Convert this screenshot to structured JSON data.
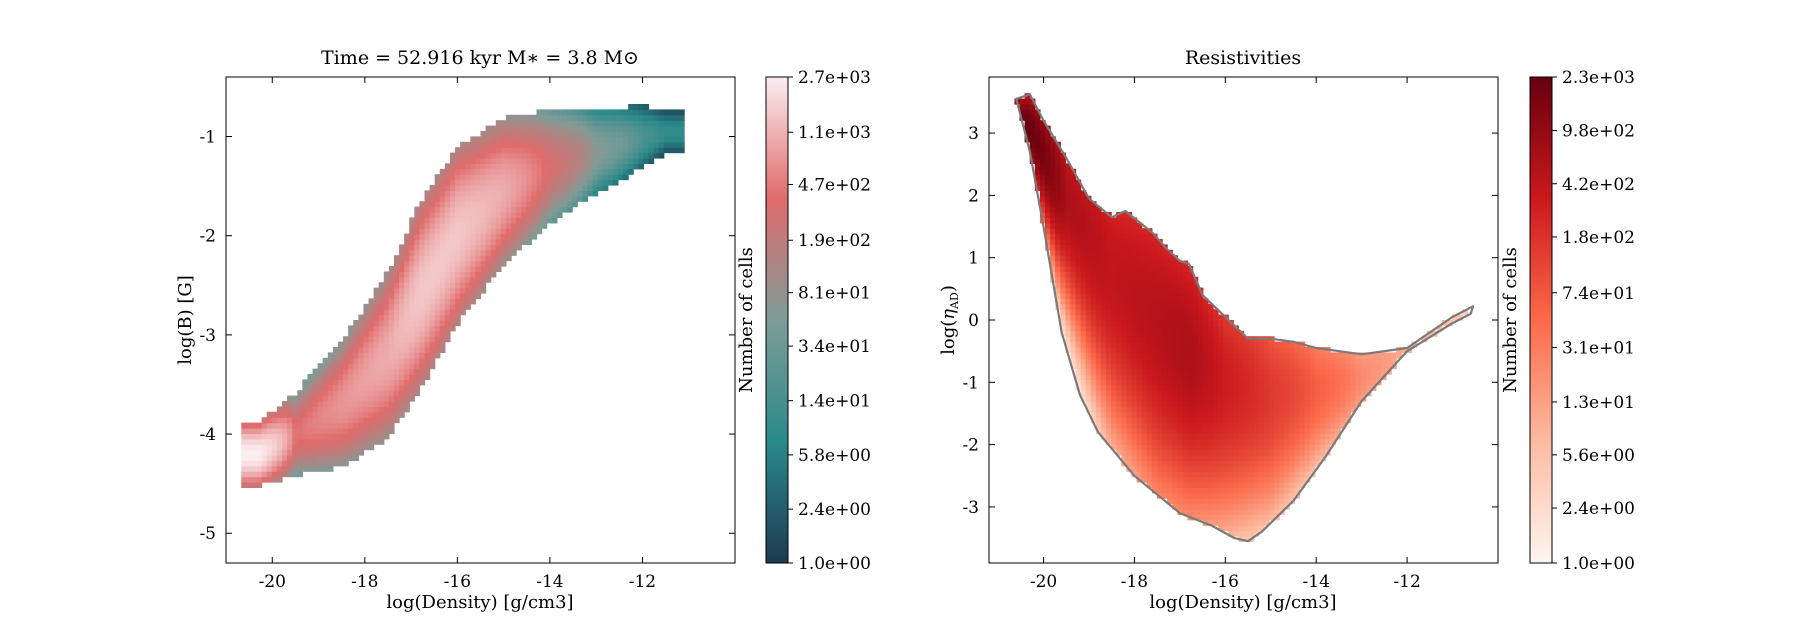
{
  "chart_data": [
    {
      "type": "heatmap",
      "title": "Time = 52.916 kyr    M$_*$ = 3.8 M$_\\odot$",
      "title_display": "Time = 52.916 kyr    M∗ = 3.8 M⊙",
      "xlabel": "log(Density) [g/cm3]",
      "ylabel": "log(B) [G]",
      "xlim": [
        -21.0,
        -10.0
      ],
      "ylim": [
        -5.3,
        -0.4
      ],
      "xticks": [
        -20,
        -18,
        -16,
        -14,
        -12
      ],
      "xtick_labels": [
        "-20",
        "-18",
        "-16",
        "-14",
        "-12"
      ],
      "yticks": [
        -5,
        -4,
        -3,
        -2,
        -1
      ],
      "ytick_labels": [
        "-5",
        "-4",
        "-3",
        "-2",
        "-1"
      ],
      "colorbar": {
        "label": "Number of cells",
        "scale": "log",
        "range": [
          1.0,
          2700
        ],
        "tick_labels": [
          "1.0e+00",
          "2.4e+00",
          "5.8e+00",
          "1.4e+01",
          "3.4e+01",
          "8.1e+01",
          "1.9e+02",
          "4.7e+02",
          "1.1e+03",
          "2.7e+03"
        ],
        "colors": [
          "#1e3a4f",
          "#2a8a8a",
          "#7e9c98",
          "#e06b6b",
          "#fbeef0"
        ]
      },
      "ridge": {
        "x": [
          -20.3,
          -19.5,
          -18.5,
          -17.5,
          -16.8,
          -16.0,
          -15.0,
          -14.0,
          -13.0,
          -12.0,
          -11.5
        ],
        "y": [
          -4.2,
          -4.0,
          -3.7,
          -3.2,
          -2.6,
          -2.0,
          -1.55,
          -1.3,
          -1.15,
          -1.0,
          -0.95
        ],
        "width": [
          0.3,
          0.4,
          0.6,
          0.8,
          0.9,
          0.85,
          0.7,
          0.55,
          0.4,
          0.3,
          0.2
        ],
        "peak_counts": [
          2700,
          400,
          700,
          1000,
          1500,
          1500,
          1000,
          300,
          60,
          15,
          8
        ]
      },
      "grid": false
    },
    {
      "type": "heatmap",
      "title": "Resistivities",
      "xlabel": "log(Density) [g/cm3]",
      "ylabel": "log(ηAD)",
      "ylabel_parts": {
        "main": "log(",
        "symbol": "η",
        "subscript": "AD",
        "end": ")"
      },
      "xlim": [
        -21.2,
        -10.0
      ],
      "ylim": [
        -3.9,
        3.9
      ],
      "xticks": [
        -20,
        -18,
        -16,
        -14,
        -12
      ],
      "xtick_labels": [
        "-20",
        "-18",
        "-16",
        "-14",
        "-12"
      ],
      "yticks": [
        -3,
        -2,
        -1,
        0,
        1,
        2,
        3
      ],
      "ytick_labels": [
        "-3",
        "-2",
        "-1",
        "0",
        "1",
        "2",
        "3"
      ],
      "colorbar": {
        "label": "Number of cells",
        "scale": "log",
        "range": [
          1.0,
          2300
        ],
        "tick_labels": [
          "1.0e+00",
          "2.4e+00",
          "5.6e+00",
          "1.3e+01",
          "3.1e+01",
          "7.4e+01",
          "1.8e+02",
          "4.2e+02",
          "9.8e+02",
          "2.3e+03"
        ],
        "colors": [
          "#fff5f0",
          "#fcbba1",
          "#fb6a4a",
          "#cb181d",
          "#67000d"
        ]
      },
      "outline": {
        "color": "#7a7a7a",
        "x": [
          -20.6,
          -20.3,
          -20.0,
          -19.5,
          -19.0,
          -18.5,
          -18.2,
          -17.6,
          -17.3,
          -17.0,
          -16.8,
          -16.5,
          -16.0,
          -15.5,
          -15.0,
          -14.5,
          -14.0,
          -13.0,
          -12.0,
          -11.0,
          -10.55,
          -10.6,
          -11.0,
          -12.0,
          -13.0,
          -13.8,
          -14.5,
          -15.2,
          -15.5,
          -15.8,
          -16.3,
          -17.0,
          -18.0,
          -18.8,
          -19.2,
          -19.6,
          -20.0,
          -20.3,
          -20.6
        ],
        "y": [
          3.55,
          3.62,
          3.2,
          2.6,
          1.95,
          1.65,
          1.75,
          1.4,
          1.15,
          0.95,
          0.9,
          0.4,
          0.05,
          -0.3,
          -0.3,
          -0.35,
          -0.45,
          -0.55,
          -0.45,
          0.05,
          0.22,
          0.1,
          -0.05,
          -0.5,
          -1.3,
          -2.2,
          -2.9,
          -3.4,
          -3.55,
          -3.5,
          -3.3,
          -3.1,
          -2.5,
          -1.8,
          -1.2,
          -0.2,
          1.5,
          2.7,
          3.55
        ]
      },
      "ridge": {
        "x": [
          -20.3,
          -19.5,
          -18.5,
          -17.5,
          -16.8,
          -16.0,
          -15.0,
          -14.0,
          -13.0,
          -12.0,
          -11.0
        ],
        "y": [
          3.1,
          2.0,
          0.8,
          0.0,
          -0.5,
          -1.0,
          -1.2,
          -1.1,
          -0.9,
          -0.5,
          0.0
        ],
        "width": [
          0.25,
          0.6,
          0.9,
          1.0,
          0.9,
          0.8,
          0.7,
          0.5,
          0.35,
          0.25,
          0.15
        ],
        "peak_counts": [
          2300,
          600,
          400,
          500,
          600,
          300,
          150,
          60,
          20,
          8,
          4
        ]
      },
      "grid": false
    }
  ]
}
